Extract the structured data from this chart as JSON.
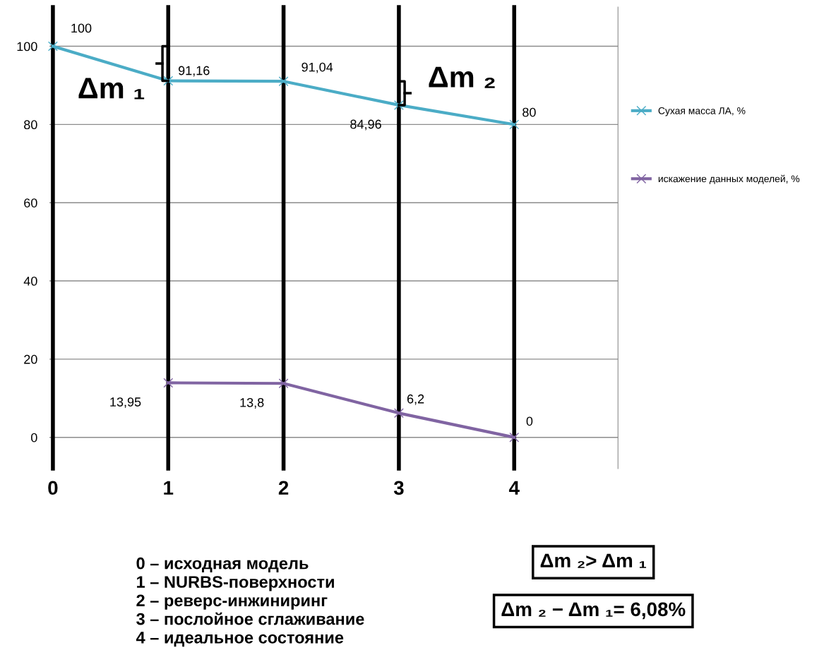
{
  "chart_data": {
    "type": "line",
    "x": [
      0,
      1,
      2,
      3,
      4
    ],
    "xlim": [
      -0.03,
      4.9
    ],
    "xticks": [
      0,
      1,
      2,
      3,
      4
    ],
    "ylim": [
      -8,
      110
    ],
    "yticks": [
      0,
      20,
      40,
      60,
      80,
      100
    ],
    "grid": "y",
    "legend": "right",
    "marker": "cross",
    "series": [
      {
        "name": "Сухая масса ЛА, %",
        "color": "#4bacc6",
        "values": [
          100,
          91.16,
          91.04,
          84.96,
          80
        ],
        "value_labels": [
          "100",
          "91,16",
          "91,04",
          "84,96",
          "80"
        ]
      },
      {
        "name": "искажение данных моделей, %",
        "color": "#8064a2",
        "values": [
          null,
          13.95,
          13.8,
          6.2,
          0
        ],
        "value_labels": [
          null,
          "13,95",
          "13,8",
          "6,2",
          "0"
        ]
      }
    ],
    "ref_lines": [
      {
        "axis": "x",
        "value": 0,
        "color": "#000000"
      },
      {
        "axis": "x",
        "value": 1,
        "color": "#000000"
      },
      {
        "axis": "x",
        "value": 2,
        "color": "#000000"
      },
      {
        "axis": "x",
        "value": 3,
        "color": "#000000"
      },
      {
        "axis": "x",
        "value": 4,
        "color": "#000000"
      }
    ],
    "annotations": [
      "Δm ₁",
      "Δm ₂",
      "0 – исходная модель\n1 – NURBS-поверхности\n2 – реверс-инжиниринг\n3 – послойное сглаживание\n4 – идеальное состояние",
      "Δm ₂> Δm ₁",
      "Δm ₂ − Δm ₁= 6,08%"
    ]
  }
}
